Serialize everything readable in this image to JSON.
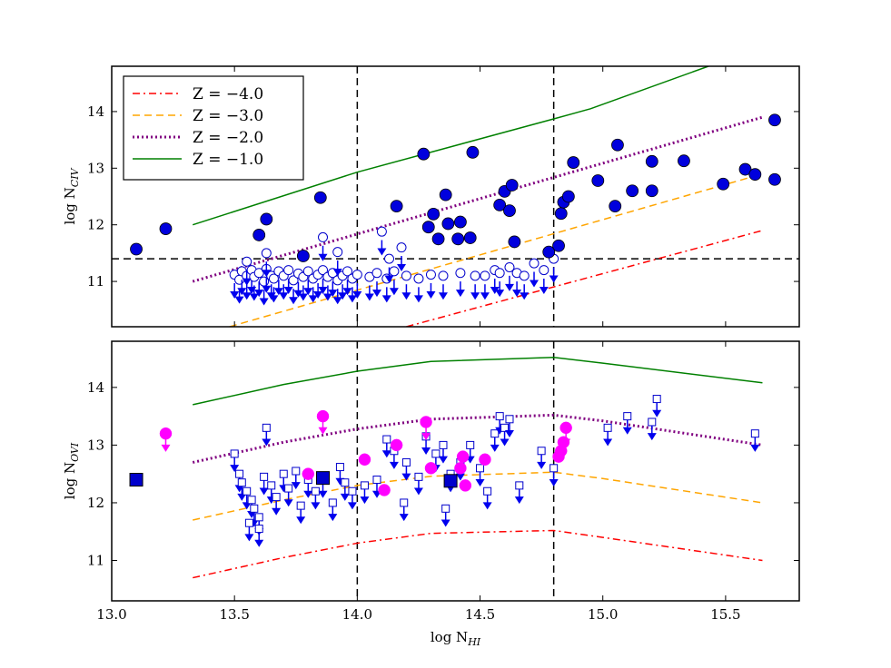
{
  "chart_data": [
    {
      "type": "scatter",
      "panel": "top",
      "xlabel": "log N",
      "xlabel_sub": "HI",
      "ylabel": "log N",
      "ylabel_sub": "CIV",
      "xlim": [
        13.0,
        15.8
      ],
      "ylim": [
        10.2,
        14.8
      ],
      "xticks": [
        "13.0",
        "13.5",
        "14.0",
        "14.5",
        "15.0",
        "15.5"
      ],
      "yticks": [
        "11",
        "12",
        "13",
        "14"
      ],
      "show_xtick_labels": false,
      "vlines": [
        14.0,
        14.8
      ],
      "hline": 11.4,
      "legend": {
        "position": "top-left",
        "entries": [
          {
            "label": "Z = −4.0",
            "color": "#ff0000",
            "style": "dashdot"
          },
          {
            "label": "Z = −3.0",
            "color": "#ffa500",
            "style": "dashed"
          },
          {
            "label": "Z = −2.0",
            "color": "#800080",
            "style": "dotted"
          },
          {
            "label": "Z = −1.0",
            "color": "#008000",
            "style": "solid"
          }
        ]
      },
      "model_lines": [
        {
          "name": "Z = −4.0",
          "color": "#ff0000",
          "style": "dashdot",
          "x": [
            14.2,
            15.65
          ],
          "y": [
            10.2,
            11.9
          ]
        },
        {
          "name": "Z = −3.0",
          "color": "#ffa500",
          "style": "dashed",
          "x": [
            13.48,
            15.65
          ],
          "y": [
            10.2,
            12.9
          ]
        },
        {
          "name": "Z = −2.0",
          "color": "#800080",
          "style": "dotted",
          "x": [
            13.33,
            15.65
          ],
          "y": [
            11.0,
            13.9
          ]
        },
        {
          "name": "Z = −1.0",
          "color": "#008000",
          "style": "solid",
          "x": [
            13.33,
            14.0,
            14.8,
            14.95,
            15.43
          ],
          "y": [
            12.0,
            12.93,
            13.87,
            14.05,
            14.8
          ]
        }
      ],
      "detections": [
        [
          13.1,
          11.57
        ],
        [
          13.22,
          11.93
        ],
        [
          13.6,
          11.82
        ],
        [
          13.63,
          12.1
        ],
        [
          13.85,
          12.48
        ],
        [
          13.78,
          11.45
        ],
        [
          14.16,
          12.33
        ],
        [
          14.27,
          13.25
        ],
        [
          14.29,
          11.96
        ],
        [
          14.31,
          12.19
        ],
        [
          14.33,
          11.75
        ],
        [
          14.36,
          12.53
        ],
        [
          14.37,
          12.02
        ],
        [
          14.41,
          11.75
        ],
        [
          14.42,
          12.05
        ],
        [
          14.46,
          11.77
        ],
        [
          14.47,
          13.28
        ],
        [
          14.58,
          12.35
        ],
        [
          14.6,
          12.59
        ],
        [
          14.62,
          12.25
        ],
        [
          14.63,
          12.7
        ],
        [
          14.64,
          11.7
        ],
        [
          14.78,
          11.52
        ],
        [
          14.82,
          11.63
        ],
        [
          14.83,
          12.2
        ],
        [
          14.84,
          12.4
        ],
        [
          14.86,
          12.5
        ],
        [
          14.88,
          13.1
        ],
        [
          14.98,
          12.78
        ],
        [
          15.05,
          12.33
        ],
        [
          15.06,
          13.41
        ],
        [
          15.12,
          12.6
        ],
        [
          15.2,
          12.6
        ],
        [
          15.2,
          13.12
        ],
        [
          15.33,
          13.13
        ],
        [
          15.49,
          12.72
        ],
        [
          15.58,
          12.98
        ],
        [
          15.62,
          12.89
        ],
        [
          15.7,
          12.8
        ],
        [
          15.7,
          13.85
        ]
      ],
      "upper_limits": [
        [
          13.5,
          11.12
        ],
        [
          13.52,
          11.03
        ],
        [
          13.53,
          11.18
        ],
        [
          13.55,
          11.1
        ],
        [
          13.57,
          11.2
        ],
        [
          13.58,
          11.08
        ],
        [
          13.6,
          11.15
        ],
        [
          13.62,
          11.0
        ],
        [
          13.63,
          11.22
        ],
        [
          13.65,
          11.1
        ],
        [
          13.66,
          11.05
        ],
        [
          13.68,
          11.18
        ],
        [
          13.7,
          11.1
        ],
        [
          13.72,
          11.2
        ],
        [
          13.74,
          11.02
        ],
        [
          13.76,
          11.14
        ],
        [
          13.78,
          11.08
        ],
        [
          13.8,
          11.18
        ],
        [
          13.82,
          11.05
        ],
        [
          13.84,
          11.12
        ],
        [
          13.86,
          11.2
        ],
        [
          13.88,
          11.08
        ],
        [
          13.9,
          11.15
        ],
        [
          13.92,
          11.02
        ],
        [
          13.94,
          11.1
        ],
        [
          13.96,
          11.18
        ],
        [
          13.98,
          11.05
        ],
        [
          14.0,
          11.12
        ],
        [
          14.05,
          11.08
        ],
        [
          14.08,
          11.15
        ],
        [
          14.1,
          11.88
        ],
        [
          14.12,
          11.05
        ],
        [
          14.15,
          11.18
        ],
        [
          14.2,
          11.1
        ],
        [
          14.25,
          11.05
        ],
        [
          14.3,
          11.12
        ],
        [
          14.35,
          11.1
        ],
        [
          14.42,
          11.15
        ],
        [
          14.48,
          11.1
        ],
        [
          14.52,
          11.1
        ],
        [
          14.56,
          11.2
        ],
        [
          14.58,
          11.15
        ],
        [
          14.62,
          11.25
        ],
        [
          14.65,
          11.15
        ],
        [
          14.68,
          11.1
        ],
        [
          14.72,
          11.32
        ],
        [
          14.76,
          11.2
        ],
        [
          14.8,
          11.4
        ],
        [
          13.55,
          11.35
        ],
        [
          13.63,
          11.5
        ],
        [
          13.86,
          11.78
        ],
        [
          14.13,
          11.4
        ],
        [
          14.18,
          11.6
        ],
        [
          13.92,
          11.52
        ]
      ]
    },
    {
      "type": "scatter",
      "panel": "bottom",
      "xlabel": "log N",
      "xlabel_sub": "HI",
      "ylabel": "log N",
      "ylabel_sub": "OVI",
      "xlim": [
        13.0,
        15.8
      ],
      "ylim": [
        10.3,
        14.8
      ],
      "xticks": [
        "13.0",
        "13.5",
        "14.0",
        "14.5",
        "15.0",
        "15.5"
      ],
      "yticks": [
        "11",
        "12",
        "13",
        "14"
      ],
      "vlines": [
        14.0,
        14.8
      ],
      "model_lines": [
        {
          "name": "Z = −4.0",
          "color": "#ff0000",
          "style": "dashdot",
          "x": [
            13.33,
            13.7,
            14.0,
            14.3,
            14.8,
            15.0,
            15.65
          ],
          "y": [
            10.7,
            11.05,
            11.3,
            11.47,
            11.52,
            11.4,
            11.0
          ]
        },
        {
          "name": "Z = −3.0",
          "color": "#ffa500",
          "style": "dashed",
          "x": [
            13.33,
            13.7,
            14.0,
            14.3,
            14.8,
            15.0,
            15.65
          ],
          "y": [
            11.7,
            12.05,
            12.3,
            12.46,
            12.53,
            12.42,
            12.0
          ]
        },
        {
          "name": "Z = −2.0",
          "color": "#800080",
          "style": "dotted",
          "x": [
            13.33,
            13.7,
            14.0,
            14.3,
            14.8,
            15.0,
            15.65
          ],
          "y": [
            12.7,
            13.05,
            13.28,
            13.45,
            13.52,
            13.42,
            13.0
          ]
        },
        {
          "name": "Z = −1.0",
          "color": "#008000",
          "style": "solid",
          "x": [
            13.33,
            13.7,
            14.0,
            14.3,
            14.8,
            15.0,
            15.65
          ],
          "y": [
            13.7,
            14.05,
            14.28,
            14.45,
            14.52,
            14.42,
            14.08
          ]
        }
      ],
      "ovi_detections_squares": [
        [
          13.1,
          12.4
        ],
        [
          13.86,
          12.43
        ],
        [
          14.38,
          12.38
        ]
      ],
      "magenta_limits": [
        [
          13.22,
          13.2
        ],
        [
          13.86,
          13.5
        ],
        [
          14.28,
          13.4
        ],
        [
          14.85,
          13.3
        ]
      ],
      "magenta_points": [
        [
          13.8,
          12.5
        ],
        [
          14.03,
          12.75
        ],
        [
          14.11,
          12.22
        ],
        [
          14.16,
          13.0
        ],
        [
          14.3,
          12.6
        ],
        [
          14.43,
          12.8
        ],
        [
          14.42,
          12.6
        ],
        [
          14.44,
          12.3
        ],
        [
          14.52,
          12.75
        ],
        [
          14.82,
          12.8
        ],
        [
          14.83,
          12.9
        ],
        [
          14.84,
          13.05
        ]
      ],
      "open_square_limits": [
        [
          13.5,
          12.85
        ],
        [
          13.52,
          12.5
        ],
        [
          13.53,
          12.35
        ],
        [
          13.55,
          12.2
        ],
        [
          13.57,
          12.05
        ],
        [
          13.58,
          11.9
        ],
        [
          13.6,
          11.75
        ],
        [
          13.62,
          12.45
        ],
        [
          13.63,
          13.3
        ],
        [
          13.65,
          12.3
        ],
        [
          13.67,
          12.1
        ],
        [
          13.7,
          12.5
        ],
        [
          13.72,
          12.25
        ],
        [
          13.75,
          12.55
        ],
        [
          13.77,
          11.95
        ],
        [
          13.8,
          12.4
        ],
        [
          13.83,
          12.2
        ],
        [
          13.86,
          12.4
        ],
        [
          13.9,
          12.0
        ],
        [
          13.93,
          12.62
        ],
        [
          13.95,
          12.35
        ],
        [
          13.98,
          12.2
        ],
        [
          14.03,
          12.3
        ],
        [
          14.08,
          12.4
        ],
        [
          14.12,
          13.1
        ],
        [
          14.15,
          12.9
        ],
        [
          14.2,
          12.7
        ],
        [
          14.25,
          12.45
        ],
        [
          14.28,
          13.15
        ],
        [
          14.32,
          12.85
        ],
        [
          14.35,
          13.0
        ],
        [
          14.38,
          12.5
        ],
        [
          14.42,
          12.7
        ],
        [
          14.46,
          13.0
        ],
        [
          14.5,
          12.6
        ],
        [
          14.53,
          12.2
        ],
        [
          14.56,
          13.2
        ],
        [
          14.58,
          13.5
        ],
        [
          14.6,
          13.3
        ],
        [
          14.62,
          13.45
        ],
        [
          14.66,
          12.3
        ],
        [
          14.75,
          12.9
        ],
        [
          14.8,
          12.6
        ],
        [
          15.02,
          13.3
        ],
        [
          15.1,
          13.5
        ],
        [
          15.2,
          13.4
        ],
        [
          15.22,
          13.8
        ],
        [
          15.62,
          13.2
        ],
        [
          13.56,
          11.65
        ],
        [
          13.6,
          11.55
        ],
        [
          14.36,
          11.9
        ],
        [
          14.19,
          12.0
        ]
      ]
    }
  ]
}
